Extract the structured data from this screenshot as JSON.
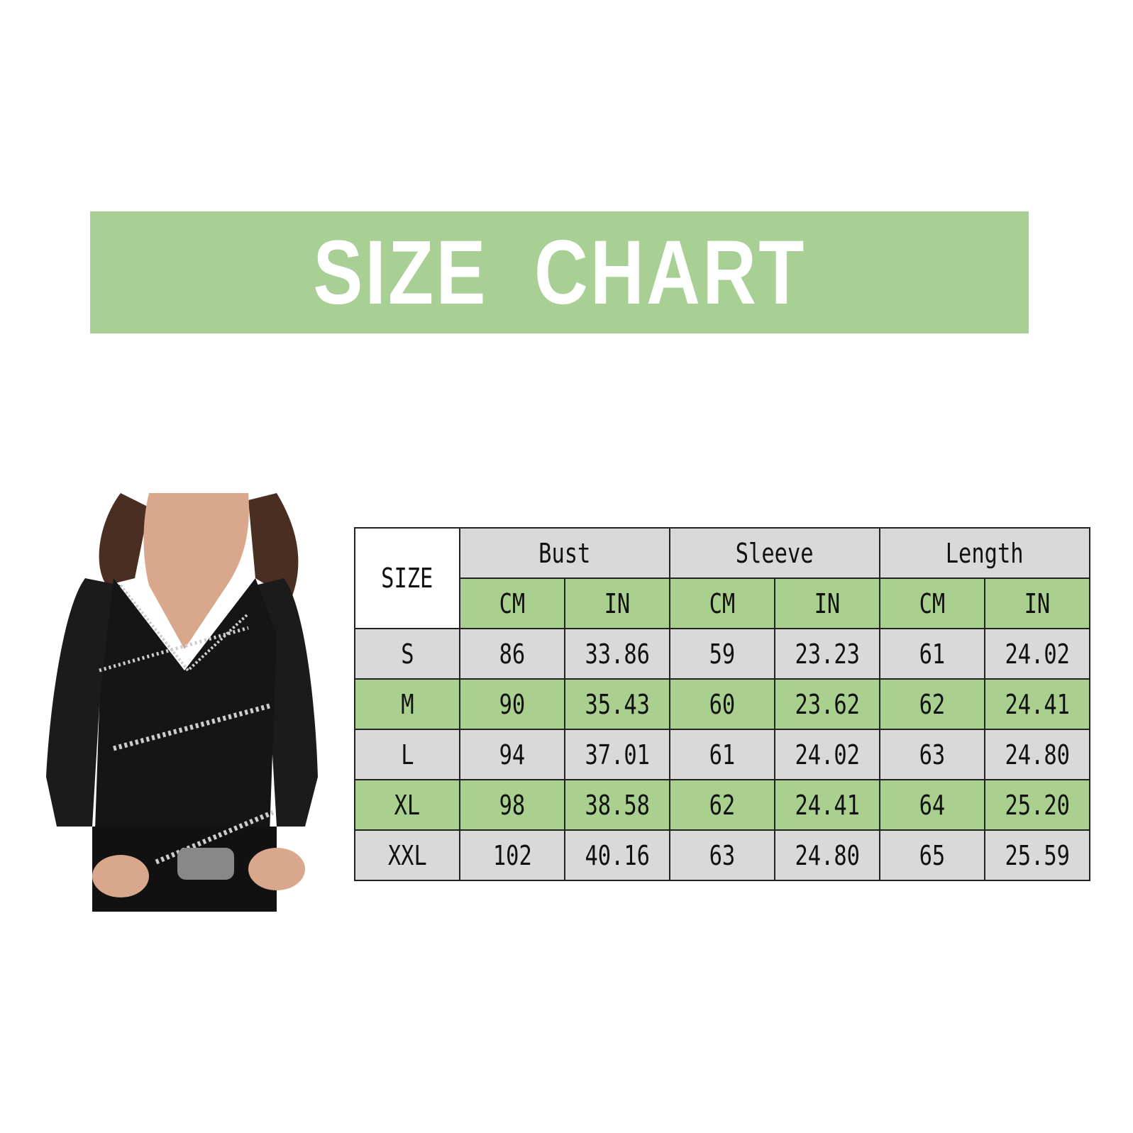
{
  "title": "SIZE CHART",
  "colors": {
    "banner": "#a9d094",
    "row_gray": "#d9d9d9",
    "row_green": "#a9d08e"
  },
  "table": {
    "size_header": "SIZE",
    "groups": [
      "Bust",
      "Sleeve",
      "Length"
    ],
    "units": [
      "CM",
      "IN",
      "CM",
      "IN",
      "CM",
      "IN"
    ],
    "rows": [
      {
        "size": "S",
        "values": [
          "86",
          "33.86",
          "59",
          "23.23",
          "61",
          "24.02"
        ]
      },
      {
        "size": "M",
        "values": [
          "90",
          "35.43",
          "60",
          "23.62",
          "62",
          "24.41"
        ]
      },
      {
        "size": "L",
        "values": [
          "94",
          "37.01",
          "61",
          "24.02",
          "63",
          "24.80"
        ]
      },
      {
        "size": "XL",
        "values": [
          "98",
          "38.58",
          "62",
          "24.41",
          "64",
          "25.20"
        ]
      },
      {
        "size": "XXL",
        "values": [
          "102",
          "40.16",
          "63",
          "24.80",
          "65",
          "25.59"
        ]
      }
    ]
  }
}
